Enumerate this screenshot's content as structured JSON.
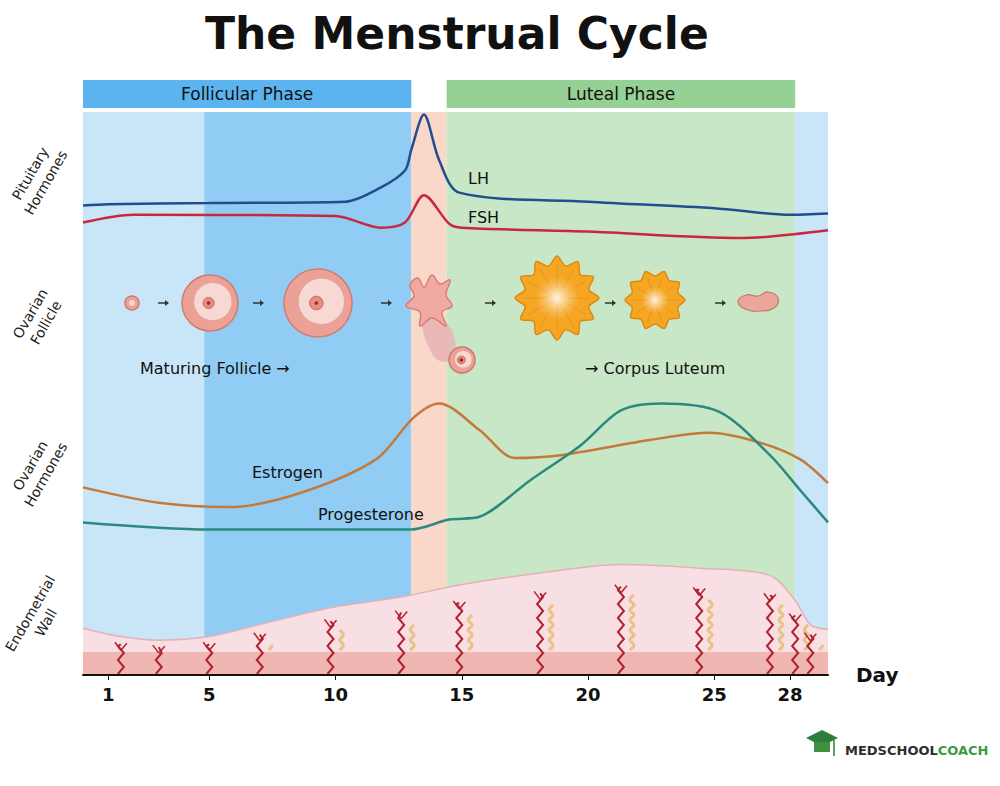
{
  "chart_data": {
    "type": "line",
    "title": "The Menstrual Cycle",
    "x_label": "Day",
    "xlim": [
      0,
      29.5
    ],
    "xticks": [
      1,
      5,
      10,
      15,
      20,
      25,
      28
    ],
    "tick_labels": "x",
    "phases": [
      {
        "label": "Follicular Phase",
        "start": 0,
        "end": 13,
        "color": "#5bb4ef"
      },
      {
        "label": "Luteal Phase",
        "start": 14.4,
        "end": 28.2,
        "color": "#95d095"
      }
    ],
    "bands": [
      {
        "start": 0,
        "end": 4.8,
        "color": "#c9e6f9"
      },
      {
        "start": 4.8,
        "end": 13,
        "color": "#90ccf3"
      },
      {
        "start": 13,
        "end": 14.4,
        "color": "#f9d7c9"
      },
      {
        "start": 14.4,
        "end": 28.2,
        "color": "#c8e7c6"
      },
      {
        "start": 28.2,
        "end": 29.5,
        "color": "#c9e6f9"
      }
    ],
    "panels": [
      {
        "label": "Pituitary\nHormones",
        "ylim": [
          0,
          100
        ],
        "series": [
          {
            "name": "LH",
            "color": "#1f4f8f",
            "x": [
              0,
              1,
              5,
              10.4,
              11.8,
              12.75,
              13,
              13.5,
              14.1,
              14.9,
              20,
              25,
              28,
              29.5
            ],
            "values": [
              28,
              29,
              30,
              31,
              42,
              55,
              71,
              98,
              63,
              38,
              31,
              26,
              21,
              22
            ]
          },
          {
            "name": "FSH",
            "color": "#c8283c",
            "x": [
              0,
              2,
              10,
              11.8,
              12.75,
              13.5,
              14.5,
              15,
              20,
              26,
              29.5
            ],
            "values": [
              15,
              21,
              20,
              11,
              15,
              36,
              14,
              11,
              8,
              3,
              9
            ]
          }
        ]
      },
      {
        "label": "Ovarian\nFollicle",
        "annotations": [
          "Maturing Follicle →",
          "→ Corpus Luteum"
        ]
      },
      {
        "label": "Ovarian\nHormones",
        "ylim": [
          0,
          100
        ],
        "series": [
          {
            "name": "Estrogen",
            "color": "#c47a3a",
            "x": [
              0,
              3,
              5.8,
              8.6,
              11.6,
              13.1,
              14.1,
              15.7,
              17.1,
              18.9,
              22.5,
              24.8,
              26.8,
              28.4,
              29.5
            ],
            "values": [
              34,
              23,
              20,
              30,
              54,
              84,
              94,
              75,
              55,
              57,
              68,
              73,
              66,
              54,
              37
            ]
          },
          {
            "name": "Progesterone",
            "color": "#2b8a7e",
            "x": [
              0,
              5,
              13,
              14.5,
              15.7,
              17.7,
              19.7,
              21.3,
              22.9,
              25.2,
              27.2,
              28.4,
              29.5
            ],
            "values": [
              9,
              4,
              4,
              11,
              13,
              39,
              64,
              89,
              94,
              88,
              57,
              32,
              9
            ]
          }
        ]
      },
      {
        "label": "Endometrial\nWall",
        "ylim": [
          0,
          100
        ],
        "series": [
          {
            "type": "area",
            "color": "#f8dfe3",
            "x": [
              0,
              1.5,
              3,
              5,
              7,
              9.8,
              12.6,
              14.9,
              18.1,
              21.3,
              24.4,
              27.2,
              28.2,
              28.8,
              29.5
            ],
            "values": [
              39,
              32,
              29,
              32,
              42,
              56,
              65,
              75,
              85,
              92,
              89,
              83,
              62,
              42,
              38
            ]
          }
        ]
      }
    ],
    "logo": [
      "MEDSCHOOL",
      "COACH"
    ]
  }
}
